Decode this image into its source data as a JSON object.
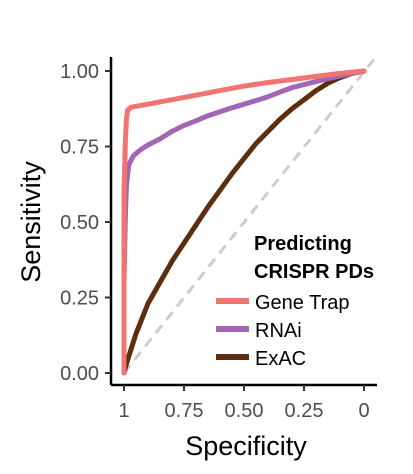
{
  "chart_data": {
    "type": "line",
    "xlabel": "Specificity",
    "ylabel": "Sensitivity",
    "x_reversed": true,
    "xlim": [
      1,
      0
    ],
    "ylim": [
      0,
      1
    ],
    "xticks": [
      "1",
      "0.75",
      "0.50",
      "0.25",
      "0"
    ],
    "xtick_values": [
      1,
      0.75,
      0.5,
      0.25,
      0
    ],
    "yticks": [
      "0.00",
      "0.25",
      "0.50",
      "0.75",
      "1.00"
    ],
    "ytick_values": [
      0,
      0.25,
      0.5,
      0.75,
      1.0
    ],
    "grid": false,
    "legend": {
      "title_lines": [
        "Predicting",
        "CRISPR PDs"
      ],
      "position": "lower-right"
    },
    "reference_line": {
      "style": "dashed",
      "color": "#cccccc",
      "points": [
        [
          1,
          0
        ],
        [
          0,
          1
        ]
      ]
    },
    "series": [
      {
        "name": "Gene Trap",
        "color": "#f07470",
        "points": [
          [
            1,
            0
          ],
          [
            1,
            0.6
          ],
          [
            0.995,
            0.75
          ],
          [
            0.99,
            0.84
          ],
          [
            0.985,
            0.87
          ],
          [
            0.97,
            0.88
          ],
          [
            0.9,
            0.89
          ],
          [
            0.8,
            0.905
          ],
          [
            0.7,
            0.92
          ],
          [
            0.6,
            0.935
          ],
          [
            0.5,
            0.95
          ],
          [
            0.4,
            0.962
          ],
          [
            0.3,
            0.972
          ],
          [
            0.2,
            0.982
          ],
          [
            0.1,
            0.992
          ],
          [
            0,
            1
          ]
        ]
      },
      {
        "name": "RNAi",
        "color": "#a466b4",
        "points": [
          [
            1,
            0
          ],
          [
            1,
            0.3
          ],
          [
            0.995,
            0.5
          ],
          [
            0.99,
            0.62
          ],
          [
            0.98,
            0.69
          ],
          [
            0.96,
            0.72
          ],
          [
            0.93,
            0.74
          ],
          [
            0.9,
            0.755
          ],
          [
            0.85,
            0.775
          ],
          [
            0.8,
            0.8
          ],
          [
            0.75,
            0.82
          ],
          [
            0.7,
            0.835
          ],
          [
            0.65,
            0.852
          ],
          [
            0.6,
            0.865
          ],
          [
            0.55,
            0.878
          ],
          [
            0.5,
            0.89
          ],
          [
            0.45,
            0.902
          ],
          [
            0.4,
            0.915
          ],
          [
            0.35,
            0.93
          ],
          [
            0.3,
            0.945
          ],
          [
            0.25,
            0.955
          ],
          [
            0.2,
            0.965
          ],
          [
            0.15,
            0.975
          ],
          [
            0.1,
            0.983
          ],
          [
            0.05,
            0.992
          ],
          [
            0,
            1
          ]
        ]
      },
      {
        "name": "ExAC",
        "color": "#5c2e0e",
        "points": [
          [
            1,
            0
          ],
          [
            0.99,
            0.03
          ],
          [
            0.97,
            0.08
          ],
          [
            0.95,
            0.13
          ],
          [
            0.92,
            0.19
          ],
          [
            0.9,
            0.23
          ],
          [
            0.85,
            0.3
          ],
          [
            0.8,
            0.37
          ],
          [
            0.75,
            0.43
          ],
          [
            0.7,
            0.49
          ],
          [
            0.65,
            0.55
          ],
          [
            0.6,
            0.605
          ],
          [
            0.55,
            0.66
          ],
          [
            0.5,
            0.71
          ],
          [
            0.45,
            0.76
          ],
          [
            0.4,
            0.8
          ],
          [
            0.35,
            0.84
          ],
          [
            0.3,
            0.875
          ],
          [
            0.25,
            0.905
          ],
          [
            0.2,
            0.935
          ],
          [
            0.15,
            0.96
          ],
          [
            0.1,
            0.978
          ],
          [
            0.05,
            0.992
          ],
          [
            0,
            1
          ]
        ]
      }
    ]
  }
}
